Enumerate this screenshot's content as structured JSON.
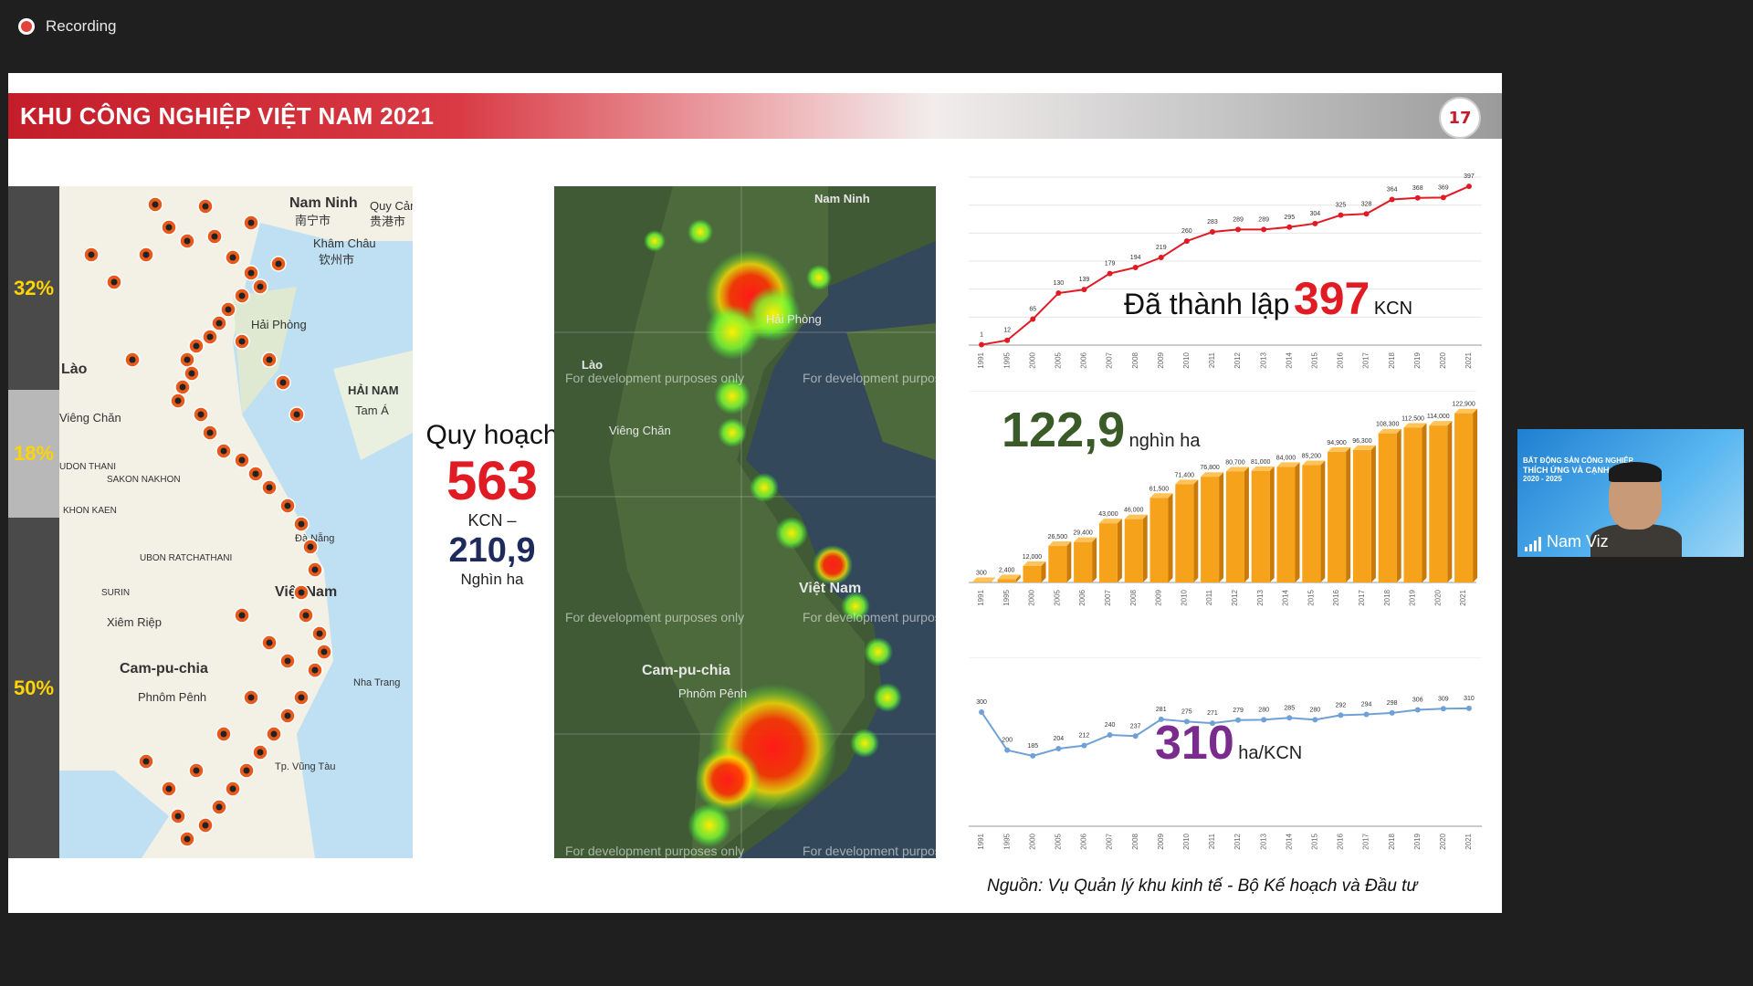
{
  "recording": {
    "label": "Recording"
  },
  "slide": {
    "title": "KHU CÔNG NGHIỆP VIỆT NAM 2021",
    "logo_text": "17",
    "percentages": [
      "32%",
      "18%",
      "50%"
    ],
    "map_labels": [
      "Nam Ninh",
      "南宁市",
      "Quy Cảm",
      "贵港市",
      "Khâm Châu",
      "钦州市",
      "Lào",
      "Viêng Chăn",
      "UDON THANI",
      "SAKON NAKHON",
      "KHON KAEN",
      "UBON RATCHATHANI",
      "SURIN",
      "Xiêm Riệp",
      "Cam-pu-chia",
      "Phnôm Pênh",
      "Việt Nam",
      "HẢI NAM",
      "Tam Á",
      "Hải Phòng",
      "Tp. Vũng Tàu",
      "Đà Nẵng",
      "Nha Trang"
    ],
    "heatmap_watermark": "For development purposes only",
    "planning": {
      "title": "Quy hoạch",
      "count": "563",
      "count_unit": "KCN –",
      "area": "210,9",
      "area_unit": "Nghìn ha"
    },
    "callouts": {
      "established_prefix": "Đã thành lập",
      "established_value": "397",
      "established_unit": "KCN",
      "area_value": "122,9",
      "area_unit": "nghìn ha",
      "avg_value": "310",
      "avg_unit": "ha/KCN"
    },
    "source": "Nguồn: Vụ Quản lý khu kinh tế - Bộ Kế hoạch và Đầu tư"
  },
  "chart_data": [
    {
      "type": "line",
      "categories": [
        "1991",
        "1995",
        "2000",
        "2005",
        "2006",
        "2007",
        "2008",
        "2009",
        "2010",
        "2011",
        "2012",
        "2013",
        "2014",
        "2015",
        "2016",
        "2017",
        "2018",
        "2019",
        "2020",
        "2021"
      ],
      "values": [
        1,
        12,
        65,
        130,
        139,
        179,
        194,
        219,
        260,
        283,
        289,
        289,
        295,
        304,
        325,
        328,
        364,
        368,
        369,
        397
      ],
      "color": "#e01b24",
      "ylim": [
        0,
        420
      ]
    },
    {
      "type": "bar",
      "categories": [
        "1991",
        "1995",
        "2000",
        "2005",
        "2006",
        "2007",
        "2008",
        "2009",
        "2010",
        "2011",
        "2012",
        "2013",
        "2014",
        "2015",
        "2016",
        "2017",
        "2018",
        "2019",
        "2020",
        "2021"
      ],
      "values": [
        300,
        2400,
        12000,
        26500,
        29400,
        43000,
        46000,
        61500,
        71400,
        76800,
        80700,
        81000,
        84000,
        85200,
        94900,
        96300,
        108300,
        112500,
        114000,
        122900
      ],
      "labels": [
        "300",
        "2,400",
        "12,000",
        "26,500",
        "29,400",
        "43,000",
        "46,000",
        "61,500",
        "71,400",
        "76,800",
        "80,700",
        "81,000",
        "84,000",
        "85,200",
        "94,900",
        "96,300",
        "108,300",
        "112,500",
        "114,000",
        "122,900"
      ],
      "color": "#f7a21b",
      "ylim": [
        0,
        130000
      ]
    },
    {
      "type": "line",
      "categories": [
        "1991",
        "1995",
        "2000",
        "2005",
        "2006",
        "2007",
        "2008",
        "2009",
        "2010",
        "2011",
        "2012",
        "2013",
        "2014",
        "2015",
        "2016",
        "2017",
        "2018",
        "2019",
        "2020",
        "2021"
      ],
      "values": [
        300,
        200,
        185,
        204,
        212,
        240,
        237,
        281,
        275,
        271,
        279,
        280,
        285,
        280,
        292,
        294,
        298,
        306,
        309,
        310
      ],
      "color": "#6fa0d6",
      "ylim": [
        0,
        420
      ]
    }
  ],
  "video": {
    "name": "Nam Viz",
    "banner": [
      "BẤT ĐỘNG SẢN CÔNG NGHIỆP",
      "THÍCH ỨNG VÀ CẠNH TRANH",
      "2020 - 2025"
    ]
  }
}
